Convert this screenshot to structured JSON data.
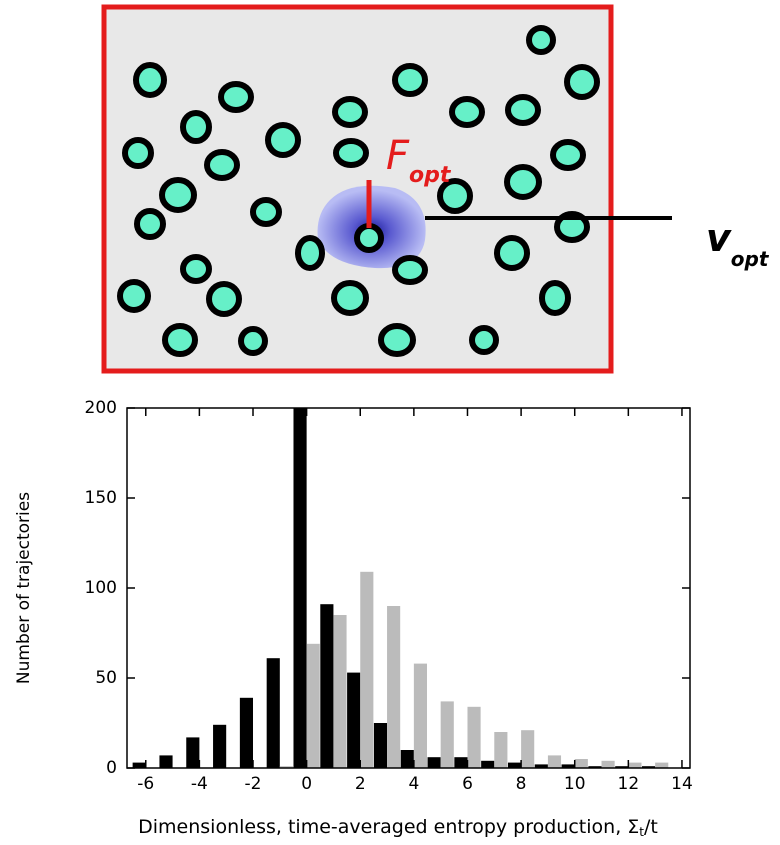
{
  "diagram": {
    "force_label": "F",
    "force_subscript": "opt",
    "velocity_label": "v",
    "velocity_subscript": "opt"
  },
  "chart_data": {
    "type": "bar",
    "y_label": "Number of trajectories",
    "x_label": "Dimensionless, time-averaged entropy production, Σ",
    "x_label_subscript": "t",
    "x_label_suffix": "/t",
    "x": [
      -6,
      -5,
      -4,
      -3,
      -2,
      -1,
      0,
      1,
      2,
      3,
      4,
      5,
      6,
      7,
      8,
      9,
      10,
      11,
      12,
      13
    ],
    "series": [
      {
        "color": "#000000",
        "values": [
          3,
          7,
          17,
          24,
          39,
          61,
          200,
          91,
          53,
          25,
          10,
          6,
          6,
          4,
          3,
          2,
          2,
          1,
          1,
          1
        ]
      },
      {
        "color": "#bbbbbb",
        "values": [
          0,
          0,
          0,
          0,
          0,
          1,
          69,
          85,
          109,
          90,
          58,
          37,
          34,
          20,
          21,
          7,
          5,
          4,
          3,
          3
        ]
      }
    ],
    "xlim": [
      -6.7,
      14.3
    ],
    "ylim": [
      0,
      200
    ],
    "xticks": [
      -6,
      -4,
      -2,
      0,
      2,
      4,
      6,
      8,
      10,
      12,
      14
    ],
    "yticks": [
      0,
      50,
      100,
      150,
      200
    ]
  }
}
